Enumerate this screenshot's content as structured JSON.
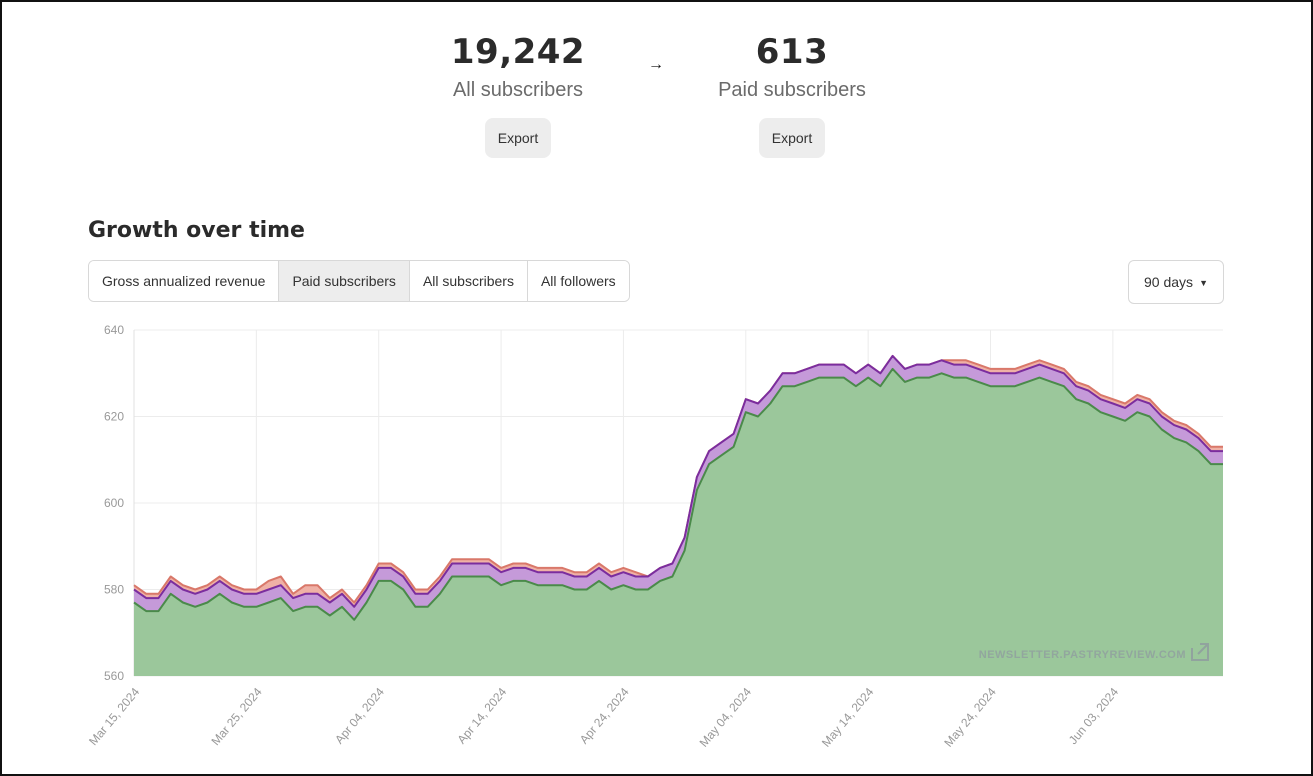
{
  "stats": {
    "all": {
      "value": "19,242",
      "label": "All subscribers",
      "export_label": "Export"
    },
    "paid": {
      "value": "613",
      "label": "Paid subscribers",
      "export_label": "Export"
    },
    "arrow": "→"
  },
  "section_title": "Growth over time",
  "tabs": [
    {
      "label": "Gross annualized revenue",
      "active": false
    },
    {
      "label": "Paid subscribers",
      "active": true
    },
    {
      "label": "All subscribers",
      "active": false
    },
    {
      "label": "All followers",
      "active": false
    }
  ],
  "range": {
    "label": "90 days",
    "caret": "▼"
  },
  "watermark": "NEWSLETTER.PASTRYREVIEW.COM",
  "chart_data": {
    "type": "area",
    "ylim": [
      560,
      640
    ],
    "yticks": [
      560,
      580,
      600,
      620,
      640
    ],
    "xticks": [
      "Mar 15, 2024",
      "Mar 25, 2024",
      "Apr 04, 2024",
      "Apr 14, 2024",
      "Apr 24, 2024",
      "May 04, 2024",
      "May 14, 2024",
      "May 24, 2024",
      "Jun 03, 2024"
    ],
    "x_start": "Mar 15, 2024",
    "colors": {
      "green": "#9bc79b",
      "green_line": "#4a8a4a",
      "purple": "#c59ad9",
      "purple_line": "#7b2d9e",
      "pink": "#efb1a6",
      "pink_line": "#d9786a"
    },
    "series": [
      {
        "color": "green",
        "values": [
          577,
          575,
          575,
          579,
          577,
          576,
          577,
          579,
          577,
          576,
          576,
          577,
          578,
          575,
          576,
          576,
          574,
          576,
          573,
          577,
          582,
          582,
          580,
          576,
          576,
          579,
          583,
          583,
          583,
          583,
          581,
          582,
          582,
          581,
          581,
          581,
          580,
          580,
          582,
          580,
          581,
          580,
          580,
          582,
          583,
          589,
          603,
          609,
          611,
          613,
          621,
          620,
          623,
          627,
          627,
          628,
          629,
          629,
          629,
          627,
          629,
          627,
          631,
          628,
          629,
          629,
          630,
          629,
          629,
          628,
          627,
          627,
          627,
          628,
          629,
          628,
          627,
          624,
          623,
          621,
          620,
          619,
          621,
          620,
          617,
          615,
          614,
          612,
          609,
          609
        ]
      },
      {
        "color": "purple",
        "values": [
          580,
          578,
          578,
          582,
          580,
          579,
          580,
          582,
          580,
          579,
          579,
          580,
          581,
          578,
          579,
          579,
          577,
          579,
          576,
          580,
          585,
          585,
          583,
          579,
          579,
          582,
          586,
          586,
          586,
          586,
          584,
          585,
          585,
          584,
          584,
          584,
          583,
          583,
          585,
          583,
          584,
          583,
          583,
          585,
          586,
          592,
          606,
          612,
          614,
          616,
          624,
          623,
          626,
          630,
          630,
          631,
          632,
          632,
          632,
          630,
          632,
          630,
          634,
          631,
          632,
          632,
          633,
          632,
          632,
          631,
          630,
          630,
          630,
          631,
          632,
          631,
          630,
          627,
          626,
          624,
          623,
          622,
          624,
          623,
          620,
          618,
          617,
          615,
          612,
          612
        ]
      },
      {
        "color": "pink",
        "values": [
          581,
          579,
          579,
          583,
          581,
          580,
          581,
          583,
          581,
          580,
          580,
          582,
          583,
          579,
          581,
          581,
          578,
          580,
          577,
          581,
          586,
          586,
          584,
          580,
          580,
          583,
          587,
          587,
          587,
          587,
          585,
          586,
          586,
          585,
          585,
          585,
          584,
          584,
          586,
          584,
          585,
          584,
          583,
          585,
          586,
          592,
          606,
          612,
          614,
          616,
          624,
          623,
          626,
          630,
          630,
          631,
          632,
          632,
          632,
          630,
          632,
          630,
          634,
          631,
          632,
          632,
          633,
          633,
          633,
          632,
          631,
          631,
          631,
          632,
          633,
          632,
          631,
          628,
          627,
          625,
          624,
          623,
          625,
          624,
          621,
          619,
          618,
          616,
          613,
          613
        ]
      }
    ]
  }
}
